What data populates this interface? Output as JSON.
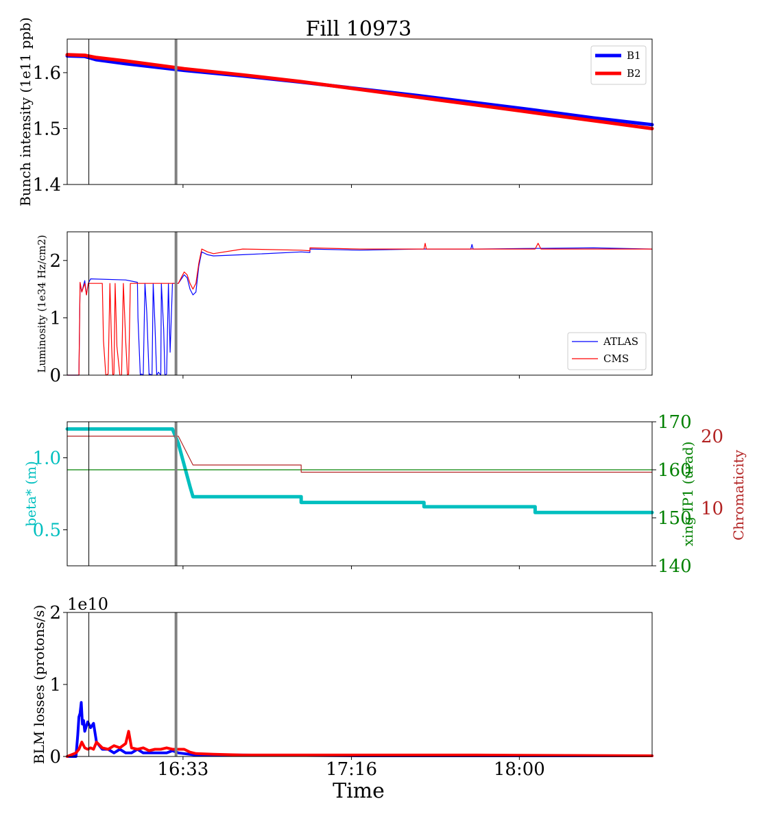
{
  "title": "Fill 10973",
  "xlabel": "Time",
  "x_tick_labels": [
    "16:33",
    "17:16",
    "18:00"
  ],
  "chart_data": [
    {
      "type": "line",
      "panel": "intensity",
      "ylabel": "Bunch intensity (1e11 ppb)",
      "ylim": [
        1.4,
        1.66
      ],
      "yticks": [
        1.4,
        1.5,
        1.6
      ],
      "ytick_labels": [
        "1.4",
        "1.5",
        "1.6"
      ],
      "legend_position": "upper-right",
      "series": [
        {
          "name": "B1",
          "color": "#0000ff",
          "width": 5,
          "x": [
            0.0,
            0.03,
            0.05,
            0.1,
            0.2,
            0.3,
            0.4,
            0.5,
            0.6,
            0.7,
            0.8,
            0.9,
            1.0
          ],
          "y": [
            1.63,
            1.629,
            1.623,
            1.616,
            1.604,
            1.594,
            1.583,
            1.571,
            1.559,
            1.546,
            1.533,
            1.519,
            1.507
          ]
        },
        {
          "name": "B2",
          "color": "#ff0000",
          "width": 5,
          "x": [
            0.0,
            0.03,
            0.05,
            0.1,
            0.2,
            0.3,
            0.4,
            0.5,
            0.6,
            0.7,
            0.8,
            0.9,
            1.0
          ],
          "y": [
            1.632,
            1.631,
            1.627,
            1.621,
            1.607,
            1.596,
            1.584,
            1.57,
            1.556,
            1.542,
            1.528,
            1.514,
            1.5
          ]
        }
      ]
    },
    {
      "type": "line",
      "panel": "luminosity",
      "ylabel": "Luminosity (1e34 Hz/cm2)",
      "ylim": [
        0,
        2.5
      ],
      "yticks": [
        0,
        1,
        2
      ],
      "ytick_labels": [
        "0",
        "1",
        "2"
      ],
      "legend_position": "lower-right",
      "series": [
        {
          "name": "ATLAS",
          "color": "#0000ff",
          "width": 1.2,
          "x": [
            0.0,
            0.02,
            0.022,
            0.025,
            0.03,
            0.033,
            0.036,
            0.04,
            0.1,
            0.12,
            0.121,
            0.125,
            0.127,
            0.13,
            0.133,
            0.136,
            0.14,
            0.141,
            0.145,
            0.147,
            0.15,
            0.153,
            0.156,
            0.16,
            0.161,
            0.165,
            0.167,
            0.17,
            0.173,
            0.176,
            0.18,
            0.19,
            0.19,
            0.2,
            0.205,
            0.21,
            0.215,
            0.22,
            0.225,
            0.23,
            0.24,
            0.25,
            0.3,
            0.4,
            0.415,
            0.415,
            0.5,
            0.6,
            0.69,
            0.692,
            0.694,
            0.7,
            0.8,
            0.9,
            1.0
          ],
          "y": [
            0.0,
            0.0,
            1.6,
            1.45,
            1.65,
            1.4,
            1.6,
            1.68,
            1.66,
            1.62,
            1.0,
            0.0,
            0.02,
            0.0,
            1.6,
            1.1,
            0.0,
            0.02,
            0.0,
            1.6,
            0.9,
            0.0,
            0.05,
            0.0,
            1.6,
            0.8,
            0.0,
            0.02,
            1.6,
            0.4,
            1.6,
            1.6,
            1.6,
            1.75,
            1.7,
            1.5,
            1.4,
            1.45,
            1.9,
            2.15,
            2.1,
            2.08,
            2.1,
            2.15,
            2.14,
            2.2,
            2.18,
            2.2,
            2.2,
            2.28,
            2.2,
            2.2,
            2.21,
            2.22,
            2.2
          ]
        },
        {
          "name": "CMS",
          "color": "#ff0000",
          "width": 1.2,
          "x": [
            0.0,
            0.02,
            0.022,
            0.025,
            0.03,
            0.033,
            0.036,
            0.04,
            0.06,
            0.062,
            0.066,
            0.07,
            0.073,
            0.076,
            0.078,
            0.08,
            0.082,
            0.085,
            0.09,
            0.093,
            0.096,
            0.1,
            0.103,
            0.105,
            0.108,
            0.11,
            0.114,
            0.12,
            0.19,
            0.2,
            0.205,
            0.21,
            0.215,
            0.22,
            0.225,
            0.23,
            0.24,
            0.25,
            0.3,
            0.4,
            0.415,
            0.415,
            0.5,
            0.6,
            0.61,
            0.612,
            0.614,
            0.7,
            0.8,
            0.805,
            0.81,
            0.9,
            1.0
          ],
          "y": [
            0.0,
            0.0,
            1.62,
            1.45,
            1.6,
            1.4,
            1.6,
            1.6,
            1.6,
            0.6,
            0.0,
            0.02,
            1.6,
            0.5,
            0.0,
            0.02,
            1.6,
            0.5,
            0.0,
            0.0,
            1.6,
            0.6,
            0.0,
            0.02,
            1.6,
            1.6,
            1.6,
            1.6,
            1.6,
            1.8,
            1.75,
            1.6,
            1.5,
            1.6,
            1.95,
            2.2,
            2.15,
            2.12,
            2.2,
            2.18,
            2.17,
            2.22,
            2.2,
            2.2,
            2.2,
            2.3,
            2.2,
            2.2,
            2.2,
            2.3,
            2.2,
            2.2,
            2.2
          ]
        }
      ]
    },
    {
      "type": "line",
      "panel": "optics",
      "ylabel": "beta* (m)",
      "ylim": [
        0.25,
        1.25
      ],
      "yticks": [
        0.5,
        1.0
      ],
      "ytick_labels": [
        "0.5",
        "1.0"
      ],
      "ylabel_right": "xing IP1 (urad)",
      "ylim_right": [
        140,
        170
      ],
      "yticks_right": [
        140,
        150,
        160,
        170
      ],
      "ytick_labels_right": [
        "140",
        "150",
        "160",
        "170"
      ],
      "ylabel_right2": "Chromaticity",
      "ylim_right2": [
        2,
        22
      ],
      "yticks_right2": [
        10,
        20
      ],
      "ytick_labels_right2": [
        "10",
        "20"
      ],
      "series": [
        {
          "name": "beta*",
          "color": "#00bfbf",
          "width": 5,
          "axis": "left",
          "x": [
            0.0,
            0.18,
            0.19,
            0.21,
            0.215,
            0.4,
            0.4,
            0.61,
            0.61,
            0.8,
            0.8,
            1.0
          ],
          "y": [
            1.2,
            1.2,
            1.1,
            0.8,
            0.73,
            0.73,
            0.69,
            0.69,
            0.66,
            0.66,
            0.62,
            0.62
          ]
        },
        {
          "name": "xing IP1",
          "color": "#008000",
          "width": 1.2,
          "axis": "right",
          "x": [
            0.0,
            1.0
          ],
          "y": [
            160,
            160
          ]
        },
        {
          "name": "Chromaticity",
          "color": "#b22222",
          "width": 1.2,
          "axis": "right2",
          "x": [
            0.0,
            0.19,
            0.215,
            0.4,
            0.4,
            1.0
          ],
          "y": [
            20.0,
            20.0,
            16.0,
            16.0,
            15.0,
            15.0
          ]
        }
      ]
    },
    {
      "type": "line",
      "panel": "losses",
      "ylabel": "BLM losses (protons/s)",
      "offset_text": "1e10",
      "ylim": [
        0,
        2
      ],
      "yticks": [
        0,
        1,
        2
      ],
      "ytick_labels": [
        "0",
        "1",
        "2"
      ],
      "series": [
        {
          "name": "B1",
          "color": "#0000ff",
          "width": 4,
          "x": [
            0.0,
            0.015,
            0.018,
            0.02,
            0.022,
            0.024,
            0.026,
            0.028,
            0.03,
            0.035,
            0.04,
            0.045,
            0.05,
            0.06,
            0.07,
            0.08,
            0.09,
            0.1,
            0.11,
            0.12,
            0.13,
            0.14,
            0.15,
            0.16,
            0.17,
            0.18,
            0.19,
            0.2,
            0.22,
            0.25,
            0.3,
            0.5,
            0.7,
            1.0
          ],
          "y": [
            0.0,
            0.0,
            0.3,
            0.55,
            0.6,
            0.75,
            0.45,
            0.5,
            0.35,
            0.48,
            0.4,
            0.46,
            0.2,
            0.1,
            0.1,
            0.05,
            0.1,
            0.05,
            0.05,
            0.1,
            0.05,
            0.05,
            0.05,
            0.05,
            0.05,
            0.08,
            0.05,
            0.04,
            0.02,
            0.02,
            0.02,
            0.01,
            0.01,
            0.01
          ]
        },
        {
          "name": "B2",
          "color": "#ff0000",
          "width": 4,
          "x": [
            0.0,
            0.015,
            0.02,
            0.025,
            0.03,
            0.035,
            0.04,
            0.045,
            0.05,
            0.06,
            0.07,
            0.08,
            0.09,
            0.1,
            0.105,
            0.11,
            0.12,
            0.13,
            0.14,
            0.15,
            0.16,
            0.17,
            0.18,
            0.19,
            0.2,
            0.21,
            0.22,
            0.25,
            0.3,
            0.5,
            0.7,
            1.0
          ],
          "y": [
            0.0,
            0.05,
            0.1,
            0.2,
            0.12,
            0.1,
            0.12,
            0.1,
            0.2,
            0.12,
            0.1,
            0.15,
            0.12,
            0.18,
            0.35,
            0.12,
            0.1,
            0.12,
            0.08,
            0.1,
            0.1,
            0.12,
            0.1,
            0.1,
            0.1,
            0.06,
            0.04,
            0.03,
            0.02,
            0.02,
            0.02,
            0.01
          ]
        }
      ]
    }
  ],
  "markers": [
    {
      "name": "thin-vertical-line",
      "x": 0.037,
      "color": "#000000",
      "width": 1
    },
    {
      "name": "thick-vertical-line",
      "x": 0.186,
      "color": "#808080",
      "width": 4
    }
  ],
  "x_ticks": [
    0.198,
    0.486,
    0.773
  ]
}
